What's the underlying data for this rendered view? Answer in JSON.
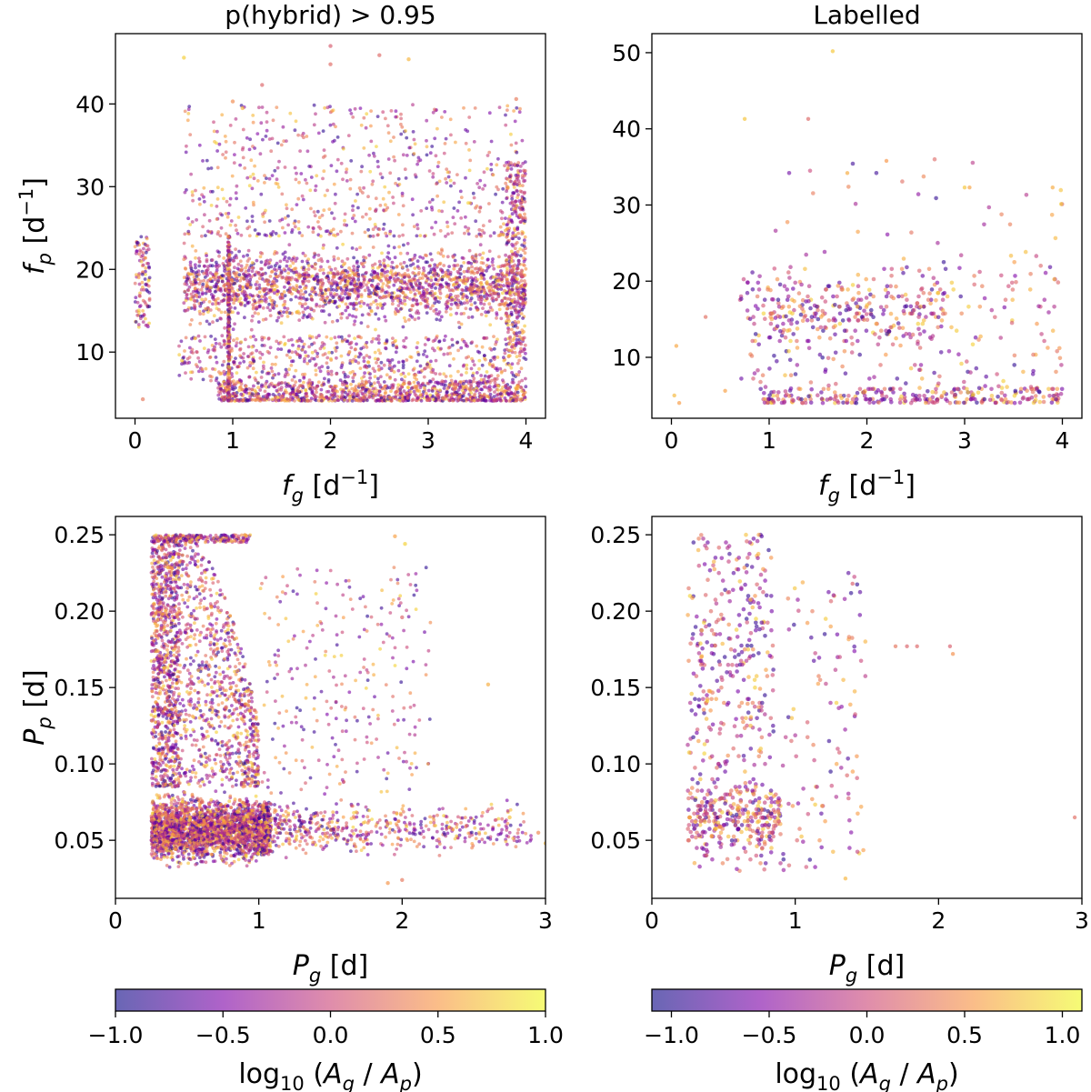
{
  "chart_data": [
    {
      "type": "scatter",
      "title": "p(hybrid) > 0.95",
      "xlabel": "f_g [d^-1]",
      "ylabel": "f_p [d^-1]",
      "xlim": [
        -0.2,
        4.2
      ],
      "ylim": [
        2.0,
        48.5
      ],
      "xticks": [
        "0",
        "1",
        "2",
        "3",
        "4"
      ],
      "yticks": [
        "10",
        "20",
        "30",
        "40"
      ],
      "color_variable": "log10(A_g / A_p)",
      "clim": [
        -1.0,
        1.0
      ],
      "grid": false,
      "features": [
        {
          "kind": "dense_block",
          "x": [
            0.5,
            4.0
          ],
          "y": [
            12,
            24
          ],
          "share": 0.38
        },
        {
          "kind": "dense_band",
          "x": [
            0.85,
            4.0
          ],
          "y": [
            4.1,
            6.5
          ],
          "share": 0.2
        },
        {
          "kind": "sparse_fill",
          "x": [
            0.45,
            4.0
          ],
          "y": [
            6.5,
            12
          ],
          "share": 0.12
        },
        {
          "kind": "sparse_upper",
          "x": [
            0.5,
            4.0
          ],
          "y": [
            24,
            40
          ],
          "share": 0.12
        },
        {
          "kind": "right_edge_cluster",
          "x": [
            3.8,
            4.0
          ],
          "y": [
            10,
            33
          ],
          "share": 0.06
        },
        {
          "kind": "low_fg_column",
          "x": [
            0.0,
            0.15
          ],
          "y": [
            13,
            24
          ],
          "share": 0.02
        },
        {
          "kind": "vertical_line",
          "x": [
            0.95,
            0.97
          ],
          "y": [
            4,
            24
          ],
          "share": 0.05
        }
      ],
      "outliers": [
        [
          0.5,
          45.6
        ],
        [
          1.0,
          40.3
        ],
        [
          1.1,
          39.5
        ],
        [
          1.3,
          42.3
        ],
        [
          2.0,
          47.0
        ],
        [
          2.0,
          44.8
        ],
        [
          2.5,
          45.9
        ],
        [
          2.8,
          45.4
        ],
        [
          3.9,
          40.6
        ],
        [
          0.08,
          4.3
        ]
      ]
    },
    {
      "type": "scatter",
      "title": "Labelled",
      "xlabel": "f_g [d^-1]",
      "ylabel": "",
      "xlim": [
        -0.2,
        4.2
      ],
      "ylim": [
        2.0,
        52.5
      ],
      "xticks": [
        "0",
        "1",
        "2",
        "3",
        "4"
      ],
      "yticks": [
        "10",
        "20",
        "30",
        "40",
        "50"
      ],
      "color_variable": "log10(A_g / A_p)",
      "clim": [
        -1.1,
        1.1
      ],
      "grid": false,
      "features": [
        {
          "kind": "dense_block",
          "x": [
            0.75,
            2.8
          ],
          "y": [
            10,
            22
          ],
          "share": 0.3
        },
        {
          "kind": "dense_band",
          "x": [
            0.9,
            4.0
          ],
          "y": [
            4.0,
            6.0
          ],
          "share": 0.35
        },
        {
          "kind": "sparse_fill",
          "x": [
            0.7,
            4.0
          ],
          "y": [
            6,
            22
          ],
          "share": 0.3
        },
        {
          "kind": "sparse_upper",
          "x": [
            1.0,
            4.0
          ],
          "y": [
            22,
            36
          ],
          "share": 0.05
        }
      ],
      "outliers": [
        [
          0.75,
          41.3
        ],
        [
          1.4,
          41.3
        ],
        [
          1.65,
          50.2
        ],
        [
          1.8,
          34.2
        ],
        [
          2.2,
          35.8
        ],
        [
          3.0,
          32.3
        ],
        [
          3.05,
          32.3
        ],
        [
          3.9,
          32.3
        ],
        [
          0.03,
          5.0
        ],
        [
          0.05,
          11.5
        ],
        [
          0.08,
          4.0
        ],
        [
          0.35,
          15.3
        ],
        [
          0.55,
          5.6
        ]
      ]
    },
    {
      "type": "scatter",
      "title": "",
      "xlabel": "P_g [d]",
      "ylabel": "P_p [d]",
      "xlim": [
        0,
        3
      ],
      "ylim": [
        0.012,
        0.262
      ],
      "xticks": [
        "0",
        "1",
        "2",
        "3"
      ],
      "yticks": [
        "0.05",
        "0.10",
        "0.15",
        "0.20",
        "0.25"
      ],
      "color_variable": "log10(A_g / A_p)",
      "clim": [
        -1.0,
        1.0
      ],
      "grid": false,
      "features": [
        {
          "kind": "dense_block",
          "x": [
            0.25,
            1.0
          ],
          "y": [
            0.03,
            0.085
          ],
          "share": 0.42
        },
        {
          "kind": "dense_column",
          "x": [
            0.25,
            0.45
          ],
          "y": [
            0.085,
            0.25
          ],
          "share": 0.18
        },
        {
          "kind": "fan",
          "x": [
            0.45,
            1.0
          ],
          "y": [
            0.085,
            0.25
          ],
          "share": 0.16
        },
        {
          "kind": "top_band",
          "x": [
            0.25,
            0.95
          ],
          "y": [
            0.245,
            0.25
          ],
          "share": 0.04
        },
        {
          "kind": "tail",
          "x": [
            1.0,
            2.9
          ],
          "y": [
            0.035,
            0.08
          ],
          "share": 0.12
        },
        {
          "kind": "sparse_mid",
          "x": [
            1.0,
            2.2
          ],
          "y": [
            0.08,
            0.23
          ],
          "share": 0.05
        },
        {
          "kind": "vertical_line",
          "x": [
            1.02,
            1.08
          ],
          "y": [
            0.04,
            0.075
          ],
          "share": 0.03
        }
      ],
      "outliers": [
        [
          1.95,
          0.249
        ],
        [
          2.02,
          0.244
        ],
        [
          2.0,
          0.196
        ],
        [
          2.6,
          0.152
        ],
        [
          2.75,
          0.065
        ],
        [
          2.95,
          0.055
        ],
        [
          3.0,
          0.048
        ],
        [
          1.9,
          0.022
        ],
        [
          2.0,
          0.024
        ]
      ]
    },
    {
      "type": "scatter",
      "title": "",
      "xlabel": "P_g [d]",
      "ylabel": "",
      "xlim": [
        0,
        3
      ],
      "ylim": [
        0.012,
        0.262
      ],
      "xticks": [
        "0",
        "1",
        "2",
        "3"
      ],
      "yticks": [
        "0.05",
        "0.10",
        "0.15",
        "0.20",
        "0.25"
      ],
      "color_variable": "log10(A_g / A_p)",
      "clim": [
        -1.1,
        1.1
      ],
      "grid": false,
      "features": [
        {
          "kind": "dense_column",
          "x": [
            0.25,
            0.85
          ],
          "y": [
            0.03,
            0.25
          ],
          "share": 0.55
        },
        {
          "kind": "dense_block",
          "x": [
            0.25,
            0.9
          ],
          "y": [
            0.04,
            0.09
          ],
          "share": 0.3
        },
        {
          "kind": "sparse_mid",
          "x": [
            0.85,
            1.5
          ],
          "y": [
            0.03,
            0.225
          ],
          "share": 0.15
        }
      ],
      "outliers": [
        [
          1.7,
          0.177
        ],
        [
          1.78,
          0.177
        ],
        [
          1.85,
          0.177
        ],
        [
          2.08,
          0.177
        ],
        [
          2.1,
          0.172
        ],
        [
          2.95,
          0.065
        ],
        [
          1.4,
          0.218
        ],
        [
          1.35,
          0.025
        ]
      ]
    }
  ],
  "colorbars": [
    {
      "ticks": [
        "−1.0",
        "−0.5",
        "0.0",
        "0.5",
        "1.0"
      ],
      "range": [
        -1.0,
        1.0
      ],
      "label": "log10 (A_g / A_p)"
    },
    {
      "ticks": [
        "−1.0",
        "−0.5",
        "0.0",
        "0.5",
        "1.0"
      ],
      "range": [
        -1.1,
        1.1
      ],
      "label": "log10 (A_g / A_p)"
    }
  ],
  "colormap": [
    "#0d0887",
    "#7e03a8",
    "#cc4778",
    "#f89540",
    "#f0f921"
  ]
}
